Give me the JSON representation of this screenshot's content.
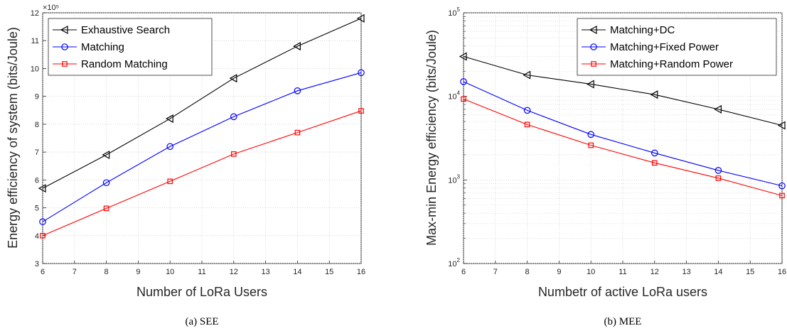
{
  "figure": {
    "captions": [
      "(a)  SEE",
      "(b)  MEE"
    ]
  },
  "chart_data": [
    {
      "type": "line",
      "caption": "(a)  SEE",
      "xlabel": "Number of LoRa Users",
      "ylabel": "Energy efficiency of system (bits/Joule)",
      "y_exponent_label": "×10⁵",
      "xlim": [
        6,
        16
      ],
      "ylim": [
        3,
        12
      ],
      "yscale": "linear",
      "xticks": [
        6,
        7,
        8,
        9,
        10,
        11,
        12,
        13,
        14,
        15,
        16
      ],
      "yticks": [
        3,
        4,
        5,
        6,
        7,
        8,
        9,
        10,
        11,
        12
      ],
      "grid": true,
      "legend_position": "top-left",
      "x": [
        6,
        8,
        10,
        12,
        14,
        16
      ],
      "series": [
        {
          "name": "Exhaustive Search",
          "color": "#000000",
          "marker": "triangle-left",
          "values": [
            5.7,
            6.9,
            8.2,
            9.65,
            10.8,
            11.8
          ]
        },
        {
          "name": "Matching",
          "color": "#0000ff",
          "marker": "circle",
          "values": [
            4.5,
            5.9,
            7.2,
            8.27,
            9.2,
            9.85
          ]
        },
        {
          "name": "Random Matching",
          "color": "#ff0000",
          "marker": "square",
          "values": [
            4.0,
            4.98,
            5.95,
            6.93,
            7.7,
            8.48
          ]
        }
      ]
    },
    {
      "type": "line",
      "caption": "(b)  MEE",
      "xlabel": "Numbetr of active LoRa users",
      "ylabel": "Max-min Energy efficiency (bits/Joule)",
      "xlim": [
        6,
        16
      ],
      "ylim": [
        100,
        100000
      ],
      "yscale": "log",
      "xticks": [
        6,
        7,
        8,
        9,
        10,
        11,
        12,
        13,
        14,
        15,
        16
      ],
      "yticks": [
        100,
        1000,
        10000,
        100000
      ],
      "grid": true,
      "legend_position": "top-right",
      "x": [
        6,
        8,
        10,
        12,
        14,
        16
      ],
      "series": [
        {
          "name": "Matching+DC",
          "color": "#000000",
          "marker": "triangle-left",
          "values": [
            30000,
            18000,
            14000,
            10500,
            7000,
            4500
          ]
        },
        {
          "name": "Matching+Fixed Power",
          "color": "#0000ff",
          "marker": "circle",
          "values": [
            15000,
            6800,
            3500,
            2100,
            1300,
            850
          ]
        },
        {
          "name": "Matching+Random Power",
          "color": "#ff0000",
          "marker": "square",
          "values": [
            9300,
            4600,
            2600,
            1600,
            1050,
            650
          ]
        }
      ]
    }
  ]
}
